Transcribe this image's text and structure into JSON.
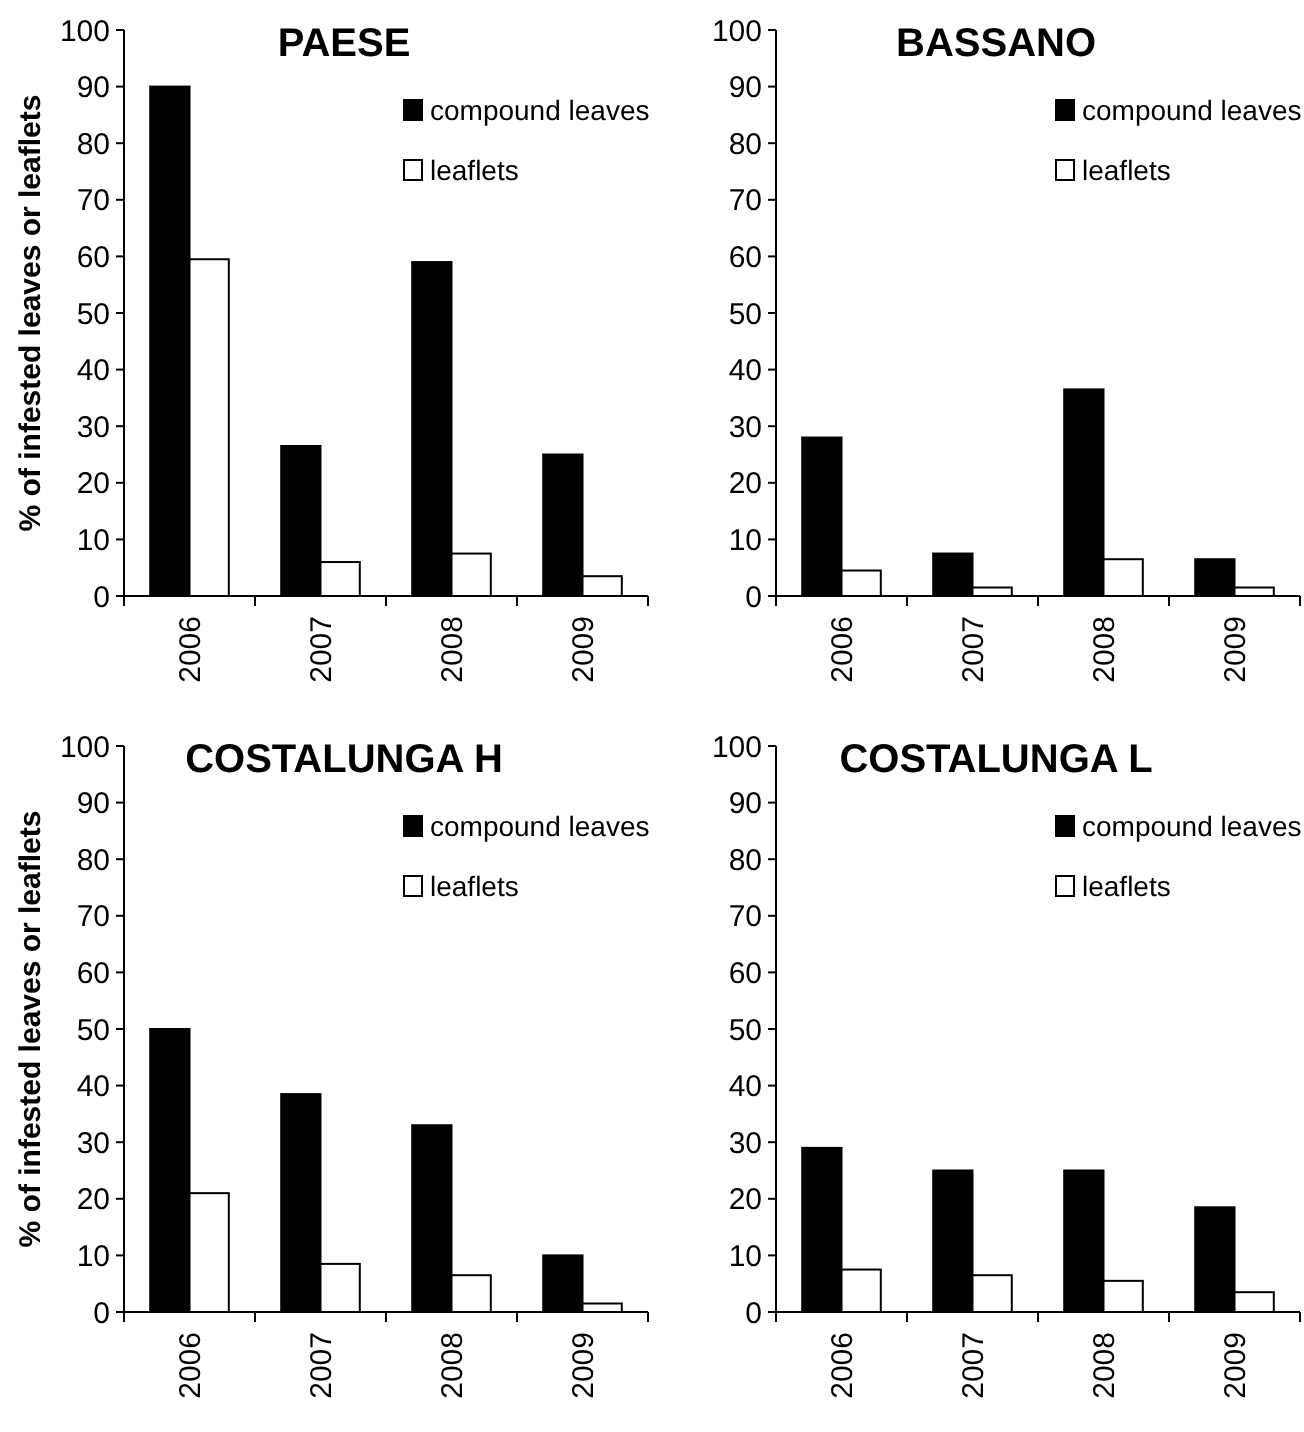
{
  "chart_data": [
    {
      "type": "bar",
      "title": "PAESE",
      "ylabel": "% of infested leaves or leaflets",
      "categories": [
        "2006",
        "2007",
        "2008",
        "2009"
      ],
      "ylim": [
        0,
        100
      ],
      "yticks": [
        0,
        10,
        20,
        30,
        40,
        50,
        60,
        70,
        80,
        90,
        100
      ],
      "grid": false,
      "legend": "top right",
      "series": [
        {
          "name": "compound leaves",
          "color": "#000000",
          "values": [
            90,
            26.5,
            59,
            25
          ]
        },
        {
          "name": "leaflets",
          "color": "#ffffff",
          "values": [
            59.5,
            6,
            7.5,
            3.5
          ]
        }
      ]
    },
    {
      "type": "bar",
      "title": "BASSANO",
      "categories": [
        "2006",
        "2007",
        "2008",
        "2009"
      ],
      "ylim": [
        0,
        100
      ],
      "yticks": [
        0,
        10,
        20,
        30,
        40,
        50,
        60,
        70,
        80,
        90,
        100
      ],
      "grid": false,
      "legend": "top right",
      "series": [
        {
          "name": "compound leaves",
          "color": "#000000",
          "values": [
            28,
            7.5,
            36.5,
            6.5
          ]
        },
        {
          "name": "leaflets",
          "color": "#ffffff",
          "values": [
            4.5,
            1.5,
            6.5,
            1.5
          ]
        }
      ]
    },
    {
      "type": "bar",
      "title": "COSTALUNGA H",
      "ylabel": "% of infested leaves or leaflets",
      "categories": [
        "2006",
        "2007",
        "2008",
        "2009"
      ],
      "ylim": [
        0,
        100
      ],
      "yticks": [
        0,
        10,
        20,
        30,
        40,
        50,
        60,
        70,
        80,
        90,
        100
      ],
      "grid": false,
      "legend": "top right",
      "series": [
        {
          "name": "compound leaves",
          "color": "#000000",
          "values": [
            50,
            38.5,
            33,
            10
          ]
        },
        {
          "name": "leaflets",
          "color": "#ffffff",
          "values": [
            21,
            8.5,
            6.5,
            1.5
          ]
        }
      ]
    },
    {
      "type": "bar",
      "title": "COSTALUNGA L",
      "categories": [
        "2006",
        "2007",
        "2008",
        "2009"
      ],
      "ylim": [
        0,
        100
      ],
      "yticks": [
        0,
        10,
        20,
        30,
        40,
        50,
        60,
        70,
        80,
        90,
        100
      ],
      "grid": false,
      "legend": "top right",
      "series": [
        {
          "name": "compound leaves",
          "color": "#000000",
          "values": [
            29,
            25,
            25,
            18.5
          ]
        },
        {
          "name": "leaflets",
          "color": "#ffffff",
          "values": [
            7.5,
            6.5,
            5.5,
            3.5
          ]
        }
      ]
    }
  ]
}
